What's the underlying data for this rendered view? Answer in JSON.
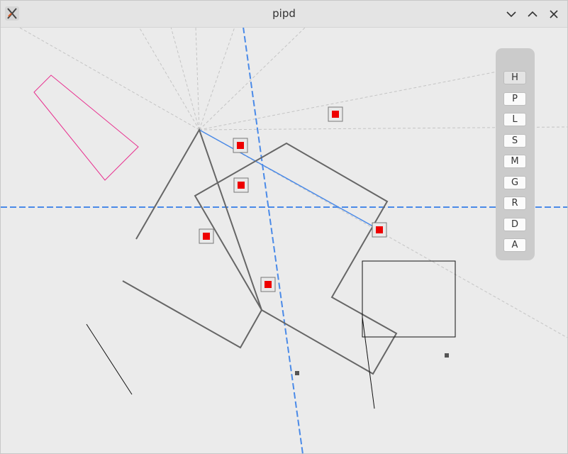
{
  "window": {
    "title": "pipd"
  },
  "toolbar": {
    "buttons": [
      {
        "label": "H",
        "active": true
      },
      {
        "label": "P",
        "active": false
      },
      {
        "label": "L",
        "active": false
      },
      {
        "label": "S",
        "active": false
      },
      {
        "label": "M",
        "active": false
      },
      {
        "label": "G",
        "active": false
      },
      {
        "label": "R",
        "active": false
      },
      {
        "label": "D",
        "active": false
      },
      {
        "label": "A",
        "active": false
      }
    ]
  },
  "colors": {
    "guide_line": "#4a8ae8",
    "shape_stroke": "#666666",
    "marker_fill": "#ee0000",
    "pink_shape": "#e8308f",
    "dashed_guides": "#c4c4c4"
  }
}
